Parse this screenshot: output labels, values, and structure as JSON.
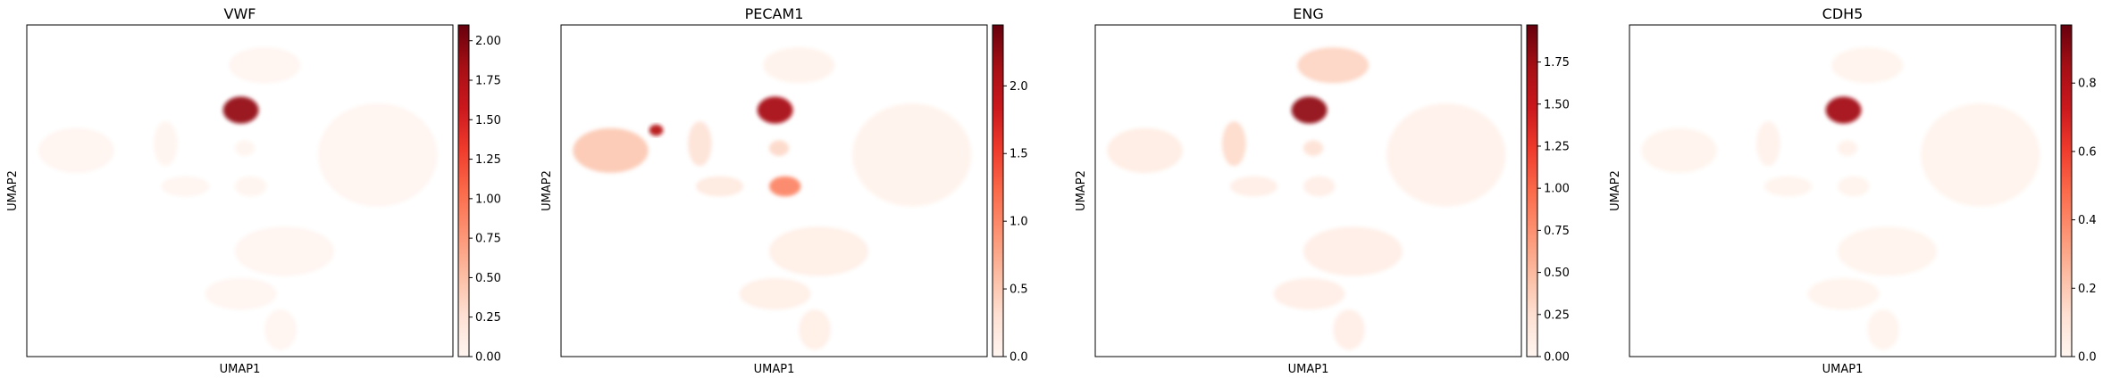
{
  "chart_data": [
    {
      "type": "scatter",
      "title": "VWF",
      "xlabel": "UMAP1",
      "ylabel": "UMAP2",
      "colormap": "Reds",
      "colorbar": {
        "min": 0,
        "max": 2.1,
        "ticks": [
          "0.00",
          "0.25",
          "0.50",
          "0.75",
          "1.00",
          "1.25",
          "1.50",
          "1.75",
          "2.00"
        ],
        "tick_values": [
          0,
          0.25,
          0.5,
          0.75,
          1.0,
          1.25,
          1.5,
          1.75,
          2.0
        ]
      },
      "clusters": [
        {
          "x": 12.0,
          "y": 10.0,
          "rx": 1.8,
          "ry": 0.8,
          "value": 0.02
        },
        {
          "x": 10.8,
          "y": 8.0,
          "rx": 0.9,
          "ry": 0.6,
          "value": 1.9
        },
        {
          "x": 2.5,
          "y": 6.2,
          "rx": 1.9,
          "ry": 1.0,
          "value": 0.02
        },
        {
          "x": 7.0,
          "y": 6.5,
          "rx": 0.6,
          "ry": 1.0,
          "value": 0.03
        },
        {
          "x": 11.0,
          "y": 6.3,
          "rx": 0.5,
          "ry": 0.35,
          "value": 0.03
        },
        {
          "x": 11.3,
          "y": 4.6,
          "rx": 0.8,
          "ry": 0.45,
          "value": 0.03
        },
        {
          "x": 8.0,
          "y": 4.6,
          "rx": 1.2,
          "ry": 0.45,
          "value": 0.02
        },
        {
          "x": 17.7,
          "y": 6.0,
          "rx": 3.0,
          "ry": 2.3,
          "value": 0.02
        },
        {
          "x": 13.0,
          "y": 1.7,
          "rx": 2.5,
          "ry": 1.1,
          "value": 0.02
        },
        {
          "x": 10.8,
          "y": -0.2,
          "rx": 1.8,
          "ry": 0.7,
          "value": 0.02
        },
        {
          "x": 12.8,
          "y": -1.8,
          "rx": 0.8,
          "ry": 0.9,
          "value": 0.02
        }
      ]
    },
    {
      "type": "scatter",
      "title": "PECAM1",
      "xlabel": "UMAP1",
      "ylabel": "UMAP2",
      "colormap": "Reds",
      "colorbar": {
        "min": 0,
        "max": 2.45,
        "ticks": [
          "0.0",
          "0.5",
          "1.0",
          "1.5",
          "2.0"
        ],
        "tick_values": [
          0,
          0.5,
          1.0,
          1.5,
          2.0
        ]
      },
      "clusters": [
        {
          "x": 12.0,
          "y": 10.0,
          "rx": 1.8,
          "ry": 0.8,
          "value": 0.06
        },
        {
          "x": 10.8,
          "y": 8.0,
          "rx": 0.9,
          "ry": 0.6,
          "value": 2.1
        },
        {
          "x": 2.5,
          "y": 6.2,
          "rx": 1.9,
          "ry": 1.0,
          "value": 0.55
        },
        {
          "x": 4.8,
          "y": 7.1,
          "rx": 0.35,
          "ry": 0.25,
          "value": 2.0
        },
        {
          "x": 7.0,
          "y": 6.5,
          "rx": 0.6,
          "ry": 1.0,
          "value": 0.3
        },
        {
          "x": 11.0,
          "y": 6.3,
          "rx": 0.5,
          "ry": 0.35,
          "value": 0.4
        },
        {
          "x": 11.3,
          "y": 4.6,
          "rx": 0.8,
          "ry": 0.45,
          "value": 1.0
        },
        {
          "x": 8.0,
          "y": 4.6,
          "rx": 1.2,
          "ry": 0.45,
          "value": 0.2
        },
        {
          "x": 17.7,
          "y": 6.0,
          "rx": 3.0,
          "ry": 2.3,
          "value": 0.06
        },
        {
          "x": 13.0,
          "y": 1.7,
          "rx": 2.5,
          "ry": 1.1,
          "value": 0.12
        },
        {
          "x": 10.8,
          "y": -0.2,
          "rx": 1.8,
          "ry": 0.7,
          "value": 0.12
        },
        {
          "x": 12.8,
          "y": -1.8,
          "rx": 0.8,
          "ry": 0.9,
          "value": 0.12
        }
      ]
    },
    {
      "type": "scatter",
      "title": "ENG",
      "xlabel": "UMAP1",
      "ylabel": "UMAP2",
      "colormap": "Reds",
      "colorbar": {
        "min": 0,
        "max": 1.97,
        "ticks": [
          "0.00",
          "0.25",
          "0.50",
          "0.75",
          "1.00",
          "1.25",
          "1.50",
          "1.75"
        ],
        "tick_values": [
          0,
          0.25,
          0.5,
          0.75,
          1.0,
          1.25,
          1.5,
          1.75
        ]
      },
      "clusters": [
        {
          "x": 12.0,
          "y": 10.0,
          "rx": 1.8,
          "ry": 0.8,
          "value": 0.35
        },
        {
          "x": 10.8,
          "y": 8.0,
          "rx": 0.9,
          "ry": 0.6,
          "value": 1.8
        },
        {
          "x": 2.5,
          "y": 6.2,
          "rx": 1.9,
          "ry": 1.0,
          "value": 0.12
        },
        {
          "x": 7.0,
          "y": 6.5,
          "rx": 0.6,
          "ry": 1.0,
          "value": 0.3
        },
        {
          "x": 11.0,
          "y": 6.3,
          "rx": 0.5,
          "ry": 0.35,
          "value": 0.25
        },
        {
          "x": 11.3,
          "y": 4.6,
          "rx": 0.8,
          "ry": 0.45,
          "value": 0.1
        },
        {
          "x": 8.0,
          "y": 4.6,
          "rx": 1.2,
          "ry": 0.45,
          "value": 0.1
        },
        {
          "x": 17.7,
          "y": 6.0,
          "rx": 3.0,
          "ry": 2.3,
          "value": 0.06
        },
        {
          "x": 13.0,
          "y": 1.7,
          "rx": 2.5,
          "ry": 1.1,
          "value": 0.1
        },
        {
          "x": 10.8,
          "y": -0.2,
          "rx": 1.8,
          "ry": 0.7,
          "value": 0.1
        },
        {
          "x": 12.8,
          "y": -1.8,
          "rx": 0.8,
          "ry": 0.9,
          "value": 0.1
        }
      ]
    },
    {
      "type": "scatter",
      "title": "CDH5",
      "xlabel": "UMAP1",
      "ylabel": "UMAP2",
      "colormap": "Reds",
      "colorbar": {
        "min": 0,
        "max": 0.97,
        "ticks": [
          "0.0",
          "0.2",
          "0.4",
          "0.6",
          "0.8"
        ],
        "tick_values": [
          0,
          0.2,
          0.4,
          0.6,
          0.8
        ]
      },
      "clusters": [
        {
          "x": 12.0,
          "y": 10.0,
          "rx": 1.8,
          "ry": 0.8,
          "value": 0.02
        },
        {
          "x": 10.8,
          "y": 8.0,
          "rx": 0.9,
          "ry": 0.6,
          "value": 0.85
        },
        {
          "x": 2.5,
          "y": 6.2,
          "rx": 1.9,
          "ry": 1.0,
          "value": 0.02
        },
        {
          "x": 7.0,
          "y": 6.5,
          "rx": 0.6,
          "ry": 1.0,
          "value": 0.03
        },
        {
          "x": 11.0,
          "y": 6.3,
          "rx": 0.5,
          "ry": 0.35,
          "value": 0.03
        },
        {
          "x": 11.3,
          "y": 4.6,
          "rx": 0.8,
          "ry": 0.45,
          "value": 0.02
        },
        {
          "x": 8.0,
          "y": 4.6,
          "rx": 1.2,
          "ry": 0.45,
          "value": 0.02
        },
        {
          "x": 17.7,
          "y": 6.0,
          "rx": 3.0,
          "ry": 2.3,
          "value": 0.02
        },
        {
          "x": 13.0,
          "y": 1.7,
          "rx": 2.5,
          "ry": 1.1,
          "value": 0.02
        },
        {
          "x": 10.8,
          "y": -0.2,
          "rx": 1.8,
          "ry": 0.7,
          "value": 0.02
        },
        {
          "x": 12.8,
          "y": -1.8,
          "rx": 0.8,
          "ry": 0.9,
          "value": 0.02
        }
      ]
    }
  ]
}
